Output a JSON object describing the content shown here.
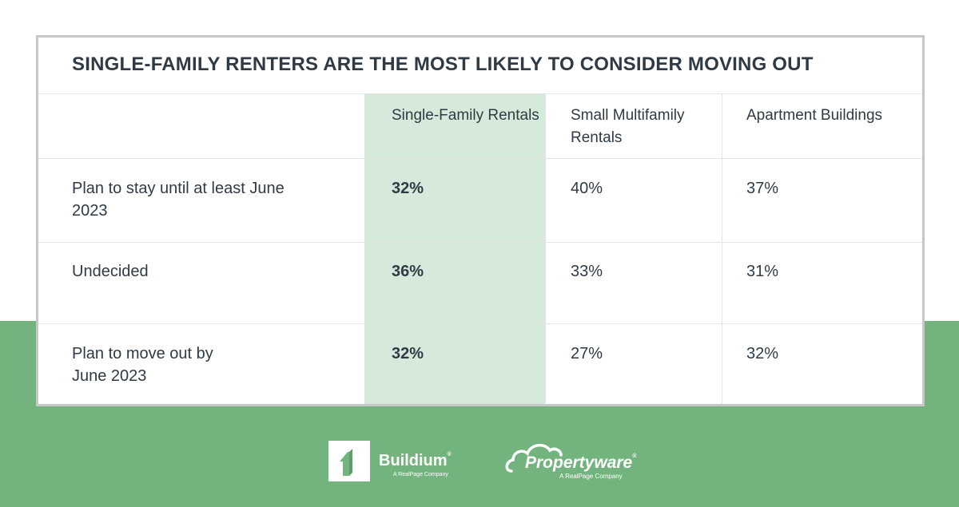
{
  "chart_data": {
    "type": "table",
    "title": "SINGLE-FAMILY RENTERS ARE THE MOST LIKELY TO CONSIDER MOVING OUT",
    "columns": [
      "Single-Family Rentals",
      "Small Multifamily Rentals",
      "Apartment Buildings"
    ],
    "highlighted_column": "Single-Family Rentals",
    "rows": [
      {
        "label": "Plan to stay until at least June 2023",
        "values": [
          "32%",
          "40%",
          "37%"
        ]
      },
      {
        "label": "Undecided",
        "values": [
          "36%",
          "33%",
          "31%"
        ]
      },
      {
        "label": "Plan to move out by June 2023",
        "values": [
          "32%",
          "27%",
          "32%"
        ]
      }
    ]
  },
  "colors": {
    "highlight": "#d5eadb",
    "green_band": "#73b47e",
    "text": "#2f3a44",
    "border": "#c7c7c7"
  },
  "logos": {
    "buildium": {
      "name": "Buildium",
      "tagline": "A RealPage Company",
      "icon": "buildium-logo-icon"
    },
    "propertyware": {
      "name": "Propertyware",
      "tagline": "A RealPage Company",
      "icon": "cloud-icon"
    }
  }
}
